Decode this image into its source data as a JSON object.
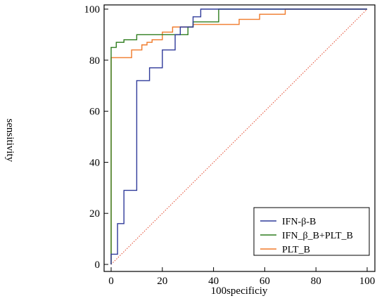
{
  "chart_data": {
    "type": "line",
    "xlabel": "100specificiy",
    "ylabel": "sensitivity",
    "xlim": [
      0,
      100
    ],
    "ylim": [
      0,
      100
    ],
    "x_ticks": [
      0,
      20,
      40,
      60,
      80,
      100
    ],
    "y_ticks": [
      0,
      20,
      40,
      60,
      80,
      100
    ],
    "legend_position": "bottom-right",
    "reference_line": {
      "x": [
        0,
        100
      ],
      "y": [
        0,
        100
      ],
      "color": "#e2452a",
      "style": "dotted"
    },
    "series": [
      {
        "name": "IFN-β-B",
        "color": "#2f3a9a",
        "x": [
          0,
          0,
          2.5,
          2.5,
          5,
          5,
          10,
          10,
          15,
          15,
          20,
          20,
          25,
          25,
          27,
          27,
          32,
          32,
          35,
          35,
          100
        ],
        "y": [
          0,
          4,
          4,
          16,
          16,
          29,
          29,
          72,
          72,
          77,
          77,
          84,
          84,
          90,
          90,
          93,
          93,
          97,
          97,
          100,
          100
        ]
      },
      {
        "name": "IFN_β_B+PLT_B",
        "color": "#2e7d1e",
        "x": [
          0,
          0,
          2,
          2,
          5,
          5,
          10,
          10,
          30,
          30,
          32,
          32,
          42,
          42,
          100
        ],
        "y": [
          0,
          85,
          85,
          87,
          87,
          88,
          88,
          90,
          90,
          93,
          93,
          95,
          95,
          100,
          100
        ]
      },
      {
        "name": "PLT_B",
        "color": "#f07a2a",
        "x": [
          0,
          0,
          8,
          8,
          12,
          12,
          14,
          14,
          16,
          16,
          20,
          20,
          24,
          24,
          32,
          32,
          50,
          50,
          58,
          58,
          68,
          68,
          100
        ],
        "y": [
          0,
          81,
          81,
          84,
          84,
          86,
          86,
          87,
          87,
          88,
          88,
          91,
          91,
          93,
          93,
          94,
          94,
          96,
          96,
          98,
          98,
          100,
          100
        ]
      }
    ]
  }
}
